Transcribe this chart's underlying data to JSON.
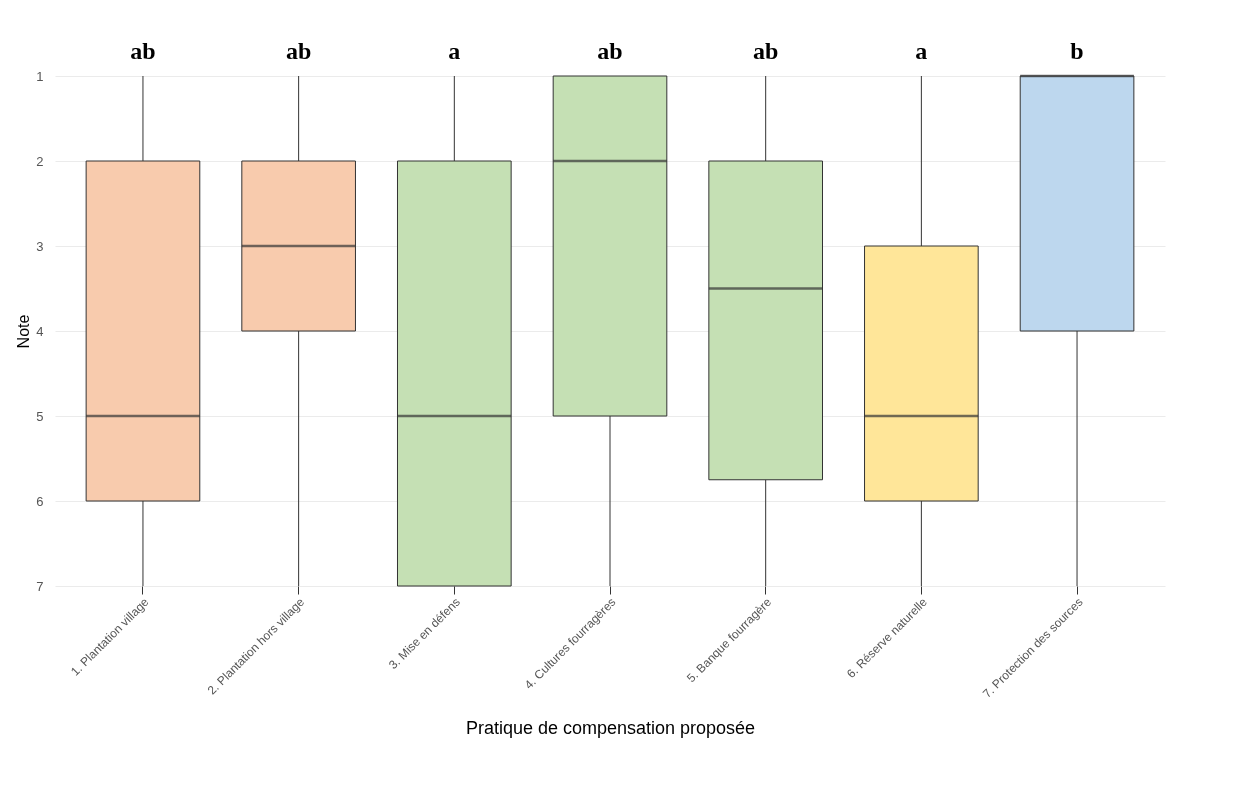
{
  "chart_data": {
    "type": "box",
    "xlabel": "Pratique de compensation proposée",
    "ylabel": "Note",
    "categories": [
      "1. Plantation village",
      "2. Plantation hors village",
      "3. Mise en défens",
      "4. Cultures fourragères",
      "5. Banque fourragère",
      "6. Réserve naturelle",
      "7. Protection des sources"
    ],
    "boxes": [
      {
        "low": 1,
        "q1": 2,
        "median": 5,
        "q3": 6,
        "high": 7
      },
      {
        "low": 1,
        "q1": 2,
        "median": 3,
        "q3": 4,
        "high": 7
      },
      {
        "low": 1,
        "q1": 2,
        "median": 5,
        "q3": 7,
        "high": 7
      },
      {
        "low": 1,
        "q1": 1,
        "median": 2,
        "q3": 5,
        "high": 7
      },
      {
        "low": 1,
        "q1": 2,
        "median": 3.5,
        "q3": 5.75,
        "high": 7
      },
      {
        "low": 1,
        "q1": 3,
        "median": 5,
        "q3": 6,
        "high": 7
      },
      {
        "low": 1,
        "q1": 1,
        "median": 1,
        "q3": 4,
        "high": 7
      }
    ],
    "colors": [
      "#f8cbad",
      "#f8cbad",
      "#c5e0b4",
      "#c5e0b4",
      "#c5e0b4",
      "#ffe699",
      "#bdd7ee"
    ],
    "ylim": [
      7,
      1
    ],
    "yticks": [
      1,
      2,
      3,
      4,
      5,
      6,
      7
    ],
    "grid": "y",
    "annotations": [
      "ab",
      "ab",
      "a",
      "ab",
      "ab",
      "a",
      "b"
    ]
  }
}
